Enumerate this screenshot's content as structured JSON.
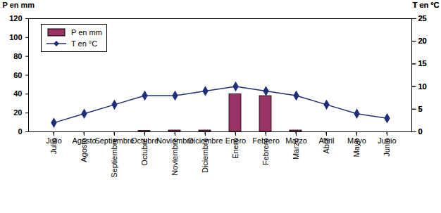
{
  "chart_data": {
    "type": "bar",
    "categories": [
      "Julio",
      "Agosto",
      "Septiembre",
      "Octubre",
      "Noviembre",
      "Diciembre",
      "Enero",
      "Febrero",
      "Marzo",
      "Abril",
      "Mayo",
      "Junio"
    ],
    "series": [
      {
        "name": "P en mm",
        "type": "bar",
        "color": "#993366",
        "values": [
          0,
          0,
          0,
          1,
          1.5,
          1.5,
          40,
          38,
          1.5,
          0,
          0,
          0
        ]
      },
      {
        "name": "T en °C",
        "type": "line",
        "axis": "y2",
        "color": "#1f2f7a",
        "marker": "diamond",
        "line_style": "solid",
        "values": [
          2,
          4,
          6,
          8,
          8,
          9,
          10,
          9,
          8,
          6,
          4,
          3
        ]
      }
    ],
    "ylabel": "P en mm",
    "y2label": "T en °C",
    "ylim": [
      0,
      120
    ],
    "yticks": [
      0,
      20,
      40,
      60,
      80,
      100,
      120
    ],
    "y2lim": [
      0,
      25
    ],
    "y2ticks": [
      0,
      5,
      10,
      15,
      20,
      25
    ],
    "legend": "top-left",
    "grid": false
  }
}
